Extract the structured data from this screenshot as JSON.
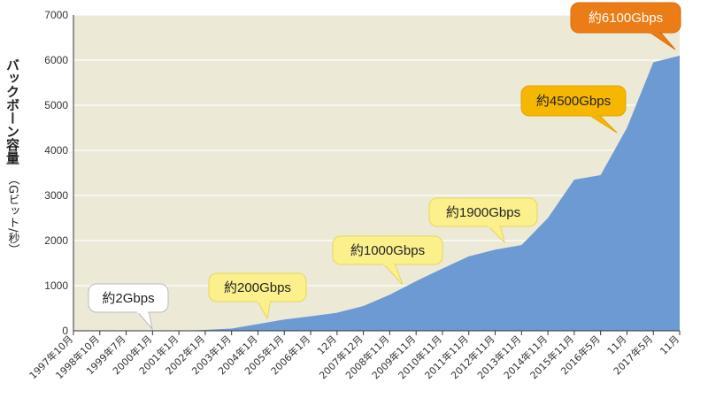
{
  "chart_data": {
    "type": "area",
    "ylabel_main": "バックボーン容量",
    "ylabel_unit": "（Gビット/秒）",
    "ylim": [
      0,
      7000
    ],
    "yticks": [
      0,
      1000,
      2000,
      3000,
      4000,
      5000,
      6000,
      7000
    ],
    "grid": true,
    "categories": [
      "1997年10月",
      "1998年10月",
      "1999年7月",
      "2000年1月",
      "2001年1月",
      "2002年1月",
      "2003年1月",
      "2004年1月",
      "2005年1月",
      "2006年1月",
      "12月",
      "2007年12月",
      "2008年11月",
      "2009年11月",
      "2010年11月",
      "2011年11月",
      "2012年11月",
      "2013年11月",
      "2014年11月",
      "2015年11月",
      "2016年5月",
      "11月",
      "2017年5月",
      "11月"
    ],
    "values": [
      0,
      0,
      0,
      0,
      0,
      20,
      50,
      150,
      250,
      320,
      400,
      550,
      800,
      1100,
      1380,
      1650,
      1800,
      1900,
      2500,
      3350,
      3450,
      4500,
      5950,
      6100
    ],
    "colors": {
      "plot_bg": "#ece9d7",
      "area": "#6d9ad3",
      "grid": "#ffffff",
      "axis": "#333333"
    },
    "annotations": [
      {
        "text": "約2Gbps",
        "index": 3,
        "style": "white"
      },
      {
        "text": "約200Gbps",
        "index": 7,
        "style": "yellow"
      },
      {
        "text": "約1000Gbps",
        "index": 12,
        "style": "yellow"
      },
      {
        "text": "約1900Gbps",
        "index": 17,
        "style": "yellow"
      },
      {
        "text": "約4500Gbps",
        "index": 21,
        "style": "amber"
      },
      {
        "text": "約6100Gbps",
        "index": 23,
        "style": "orange"
      }
    ],
    "annotation_colors": {
      "white": {
        "fill": "#ffffff",
        "stroke": "#bbbbbb",
        "text": "#222222"
      },
      "yellow": {
        "fill": "#fbf08c",
        "stroke": "#e6d65a",
        "text": "#222222"
      },
      "amber": {
        "fill": "#f5b700",
        "stroke": "#e0a500",
        "text": "#222222"
      },
      "orange": {
        "fill": "#ec7d16",
        "stroke": "#d96c0a",
        "text": "#ffffff"
      }
    }
  }
}
